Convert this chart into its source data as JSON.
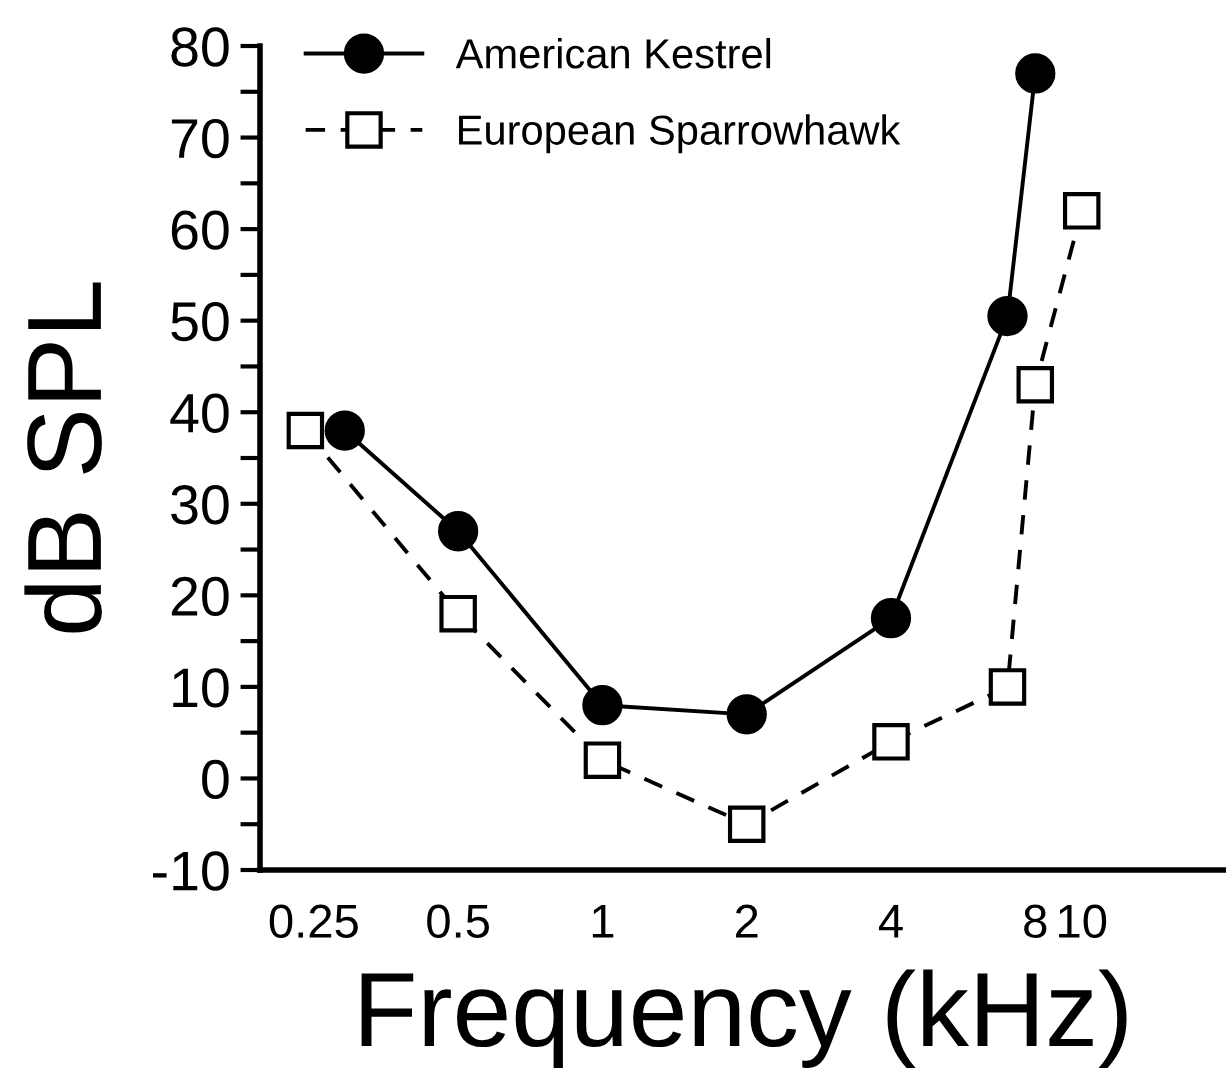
{
  "chart_data": {
    "type": "line",
    "xlabel": "Frequency (kHz)",
    "ylabel": "dB SPL",
    "log": "x",
    "xlim": [
      0.193,
      20
    ],
    "ylim": [
      -10,
      80
    ],
    "xticks": [
      0.25,
      0.5,
      1,
      2,
      4,
      8,
      10
    ],
    "yticks": [
      -10,
      {
        "value": -5,
        "label": null
      },
      0,
      {
        "value": 5,
        "label": null
      },
      10,
      {
        "value": 15,
        "label": null
      },
      20,
      {
        "value": 25,
        "label": null
      },
      30,
      {
        "value": 35,
        "label": null
      },
      40,
      {
        "value": 45,
        "label": null
      },
      50,
      {
        "value": 55,
        "label": null
      },
      60,
      {
        "value": 65,
        "label": null
      },
      70,
      {
        "value": 75,
        "label": null
      },
      80
    ],
    "grid": false,
    "legend": "top left",
    "series": [
      {
        "name": "American Kestrel",
        "color": "#000000",
        "marker": "circle",
        "line_style": "solid",
        "x": [
          0.29,
          0.5,
          1,
          2,
          4,
          7,
          8
        ],
        "values": [
          38,
          27,
          8,
          7,
          17.5,
          50.5,
          77
        ]
      },
      {
        "name": "European Sparrowhawk",
        "color": "#000000",
        "marker": "square",
        "line_style": "dashed",
        "x": [
          0.24,
          0.5,
          1,
          2,
          4,
          7,
          8,
          10
        ],
        "values": [
          38,
          18,
          2,
          -5,
          4,
          10,
          43,
          62
        ]
      }
    ]
  }
}
